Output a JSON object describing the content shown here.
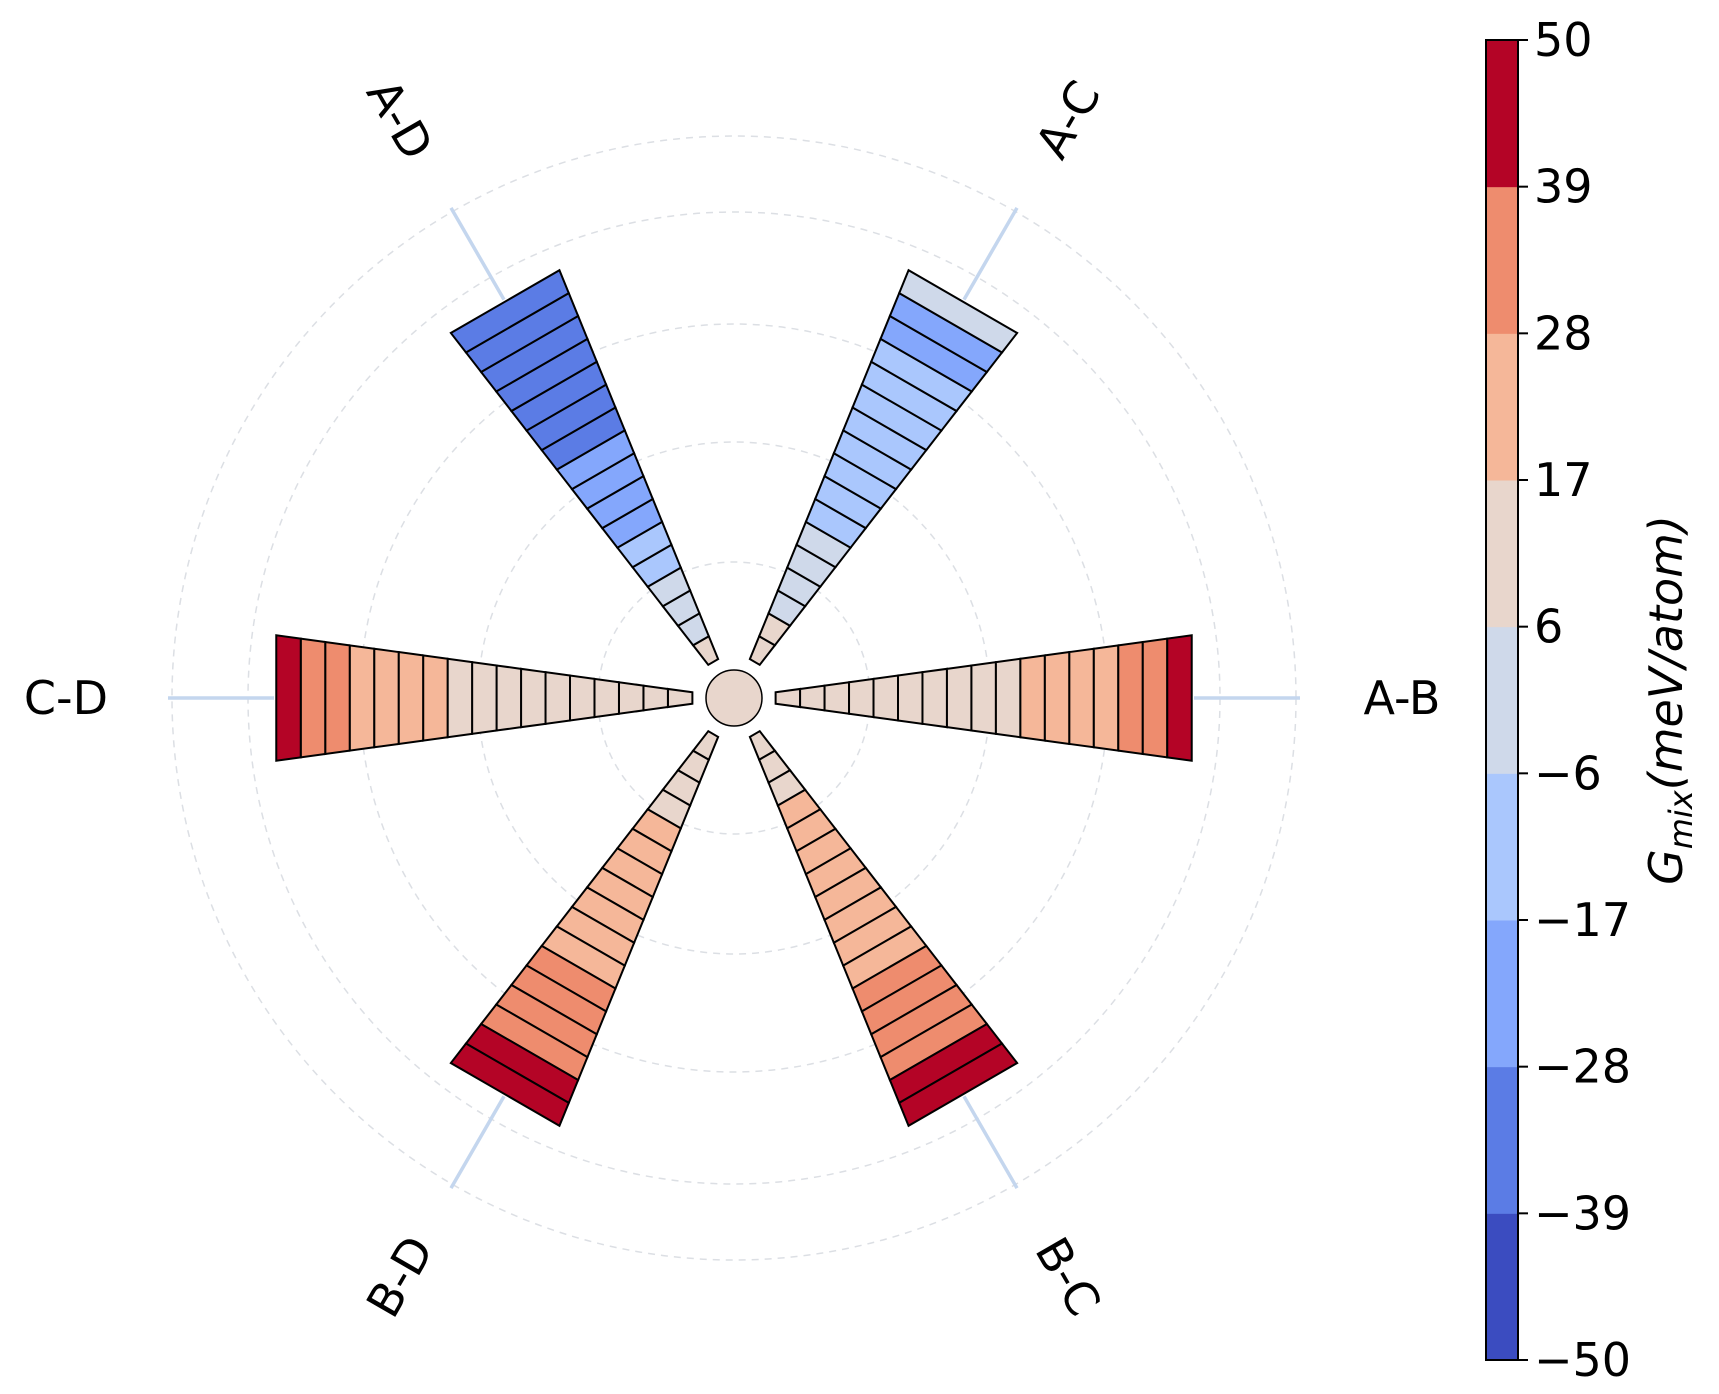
{
  "chart_data": {
    "type": "radial-segmented-bar",
    "pairs": [
      {
        "label": "A-B",
        "angle_deg": 0,
        "values": [
          9,
          9,
          10,
          10,
          11,
          11,
          12,
          13,
          14,
          16,
          18,
          21,
          24,
          27,
          31,
          37,
          45
        ]
      },
      {
        "label": "A-C",
        "angle_deg": 60,
        "values": [
          12,
          8,
          4,
          2,
          0,
          -2,
          -6,
          -8,
          -10,
          -12,
          -13,
          -14,
          -15,
          -16,
          -17,
          -18,
          5
        ]
      },
      {
        "label": "A-D",
        "angle_deg": 120,
        "values": [
          12,
          5,
          0,
          -5,
          -10,
          -14,
          -18,
          -21,
          -24,
          -26,
          -28,
          -30,
          -32,
          -34,
          -35,
          -36,
          -38
        ]
      },
      {
        "label": "C-D",
        "angle_deg": 180,
        "values": [
          9,
          9,
          10,
          10,
          11,
          11,
          12,
          13,
          14,
          16,
          18,
          21,
          24,
          27,
          31,
          37,
          45
        ]
      },
      {
        "label": "B-D",
        "angle_deg": 240,
        "values": [
          8,
          10,
          12,
          14,
          17,
          19,
          21,
          23,
          24,
          25,
          26,
          28,
          30,
          33,
          36,
          42,
          46
        ]
      },
      {
        "label": "B-C",
        "angle_deg": 300,
        "values": [
          8,
          10,
          14,
          19,
          22,
          23,
          23,
          24,
          24,
          25,
          27,
          29,
          31,
          34,
          37,
          42,
          46
        ]
      }
    ],
    "colorbar": {
      "label": "G",
      "label_subscript": "mix",
      "label_units": "(meV/atom)",
      "ticks": [
        "50",
        "39",
        "28",
        "17",
        "6",
        "−6",
        "−17",
        "−28",
        "−39",
        "−50"
      ],
      "range": [
        -50,
        50
      ],
      "levels": 9,
      "colors_low_to_high": [
        "#3b4cc0",
        "#5b7ce5",
        "#84a7fc",
        "#aac7fd",
        "#cfd9ea",
        "#e8d6cc",
        "#f5b799",
        "#ee8c6e",
        "#b40426"
      ]
    },
    "center_color": "#e8d6cc",
    "spoke_color": "#c4d6ee",
    "grid": true
  }
}
